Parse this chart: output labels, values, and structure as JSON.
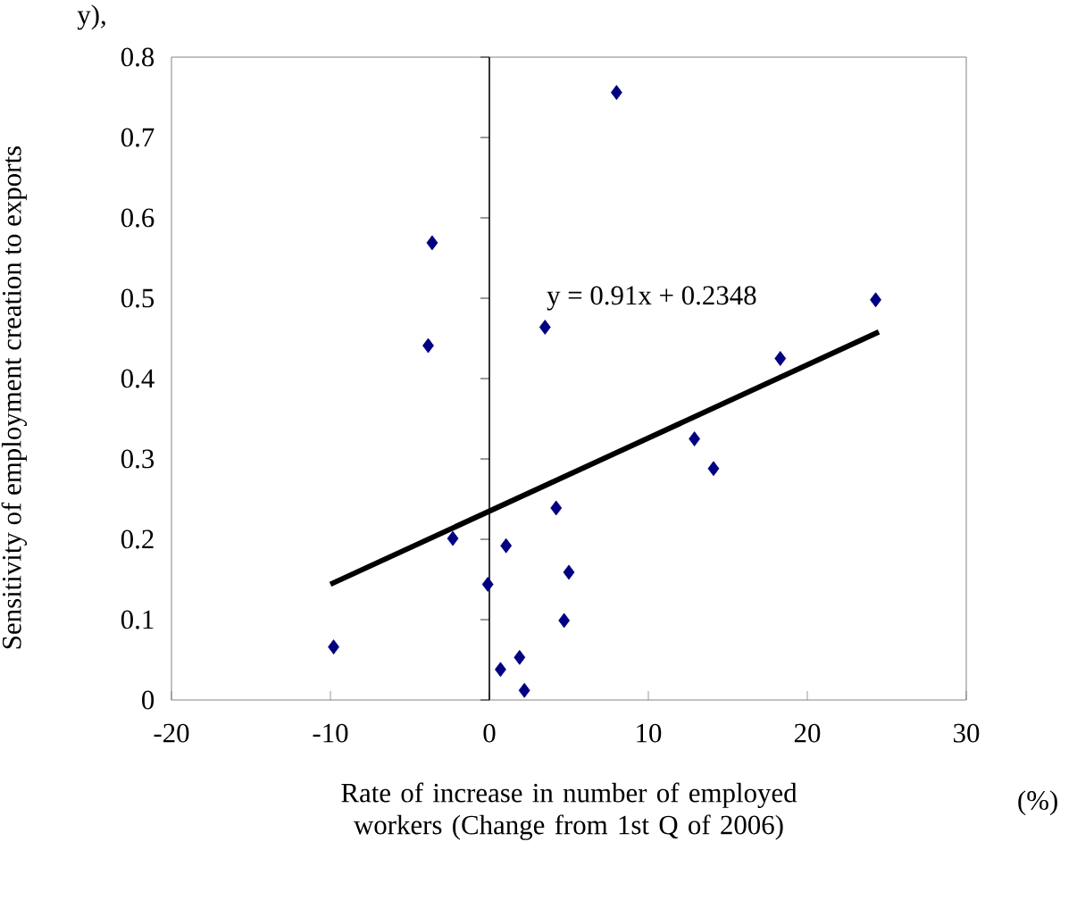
{
  "chart_data": {
    "type": "scatter",
    "xlabel": "Rate of increase in number of employed workers (Change from 1st Q of 2006)",
    "ylabel": "Sensitivity of employment creation to exports",
    "xlim": [
      -20,
      30
    ],
    "xticks": [
      -20,
      -10,
      0,
      10,
      20,
      30
    ],
    "ylim": [
      0,
      0.8
    ],
    "yticks": [
      0,
      0.1,
      0.2,
      0.3,
      0.4,
      0.5,
      0.6,
      0.7,
      0.8
    ],
    "grid": false,
    "ref_lines": [
      {
        "axis": "x",
        "value": 0,
        "color": "#000000"
      }
    ],
    "annotations": [
      "y),",
      "(%)",
      "y = 0.91x + 0.2348"
    ],
    "series": [
      {
        "color": "#000080",
        "marker": "diamond",
        "x": [
          8.0,
          -3.6,
          -3.85,
          3.5,
          4.2,
          -2.3,
          1.05,
          -0.1,
          5.0,
          4.7,
          -9.8,
          0.7,
          1.9,
          2.2,
          24.3,
          18.3,
          12.9,
          14.1
        ],
        "values": [
          0.756,
          0.569,
          0.441,
          0.464,
          0.239,
          0.201,
          0.192,
          0.144,
          0.159,
          0.099,
          0.066,
          0.038,
          0.053,
          0.012,
          0.498,
          0.425,
          0.325,
          0.288
        ]
      },
      {
        "type": "line",
        "color": "#000000",
        "marker": "none",
        "x": [
          -10,
          24.5
        ],
        "values": [
          0.144,
          0.458
        ]
      }
    ]
  }
}
